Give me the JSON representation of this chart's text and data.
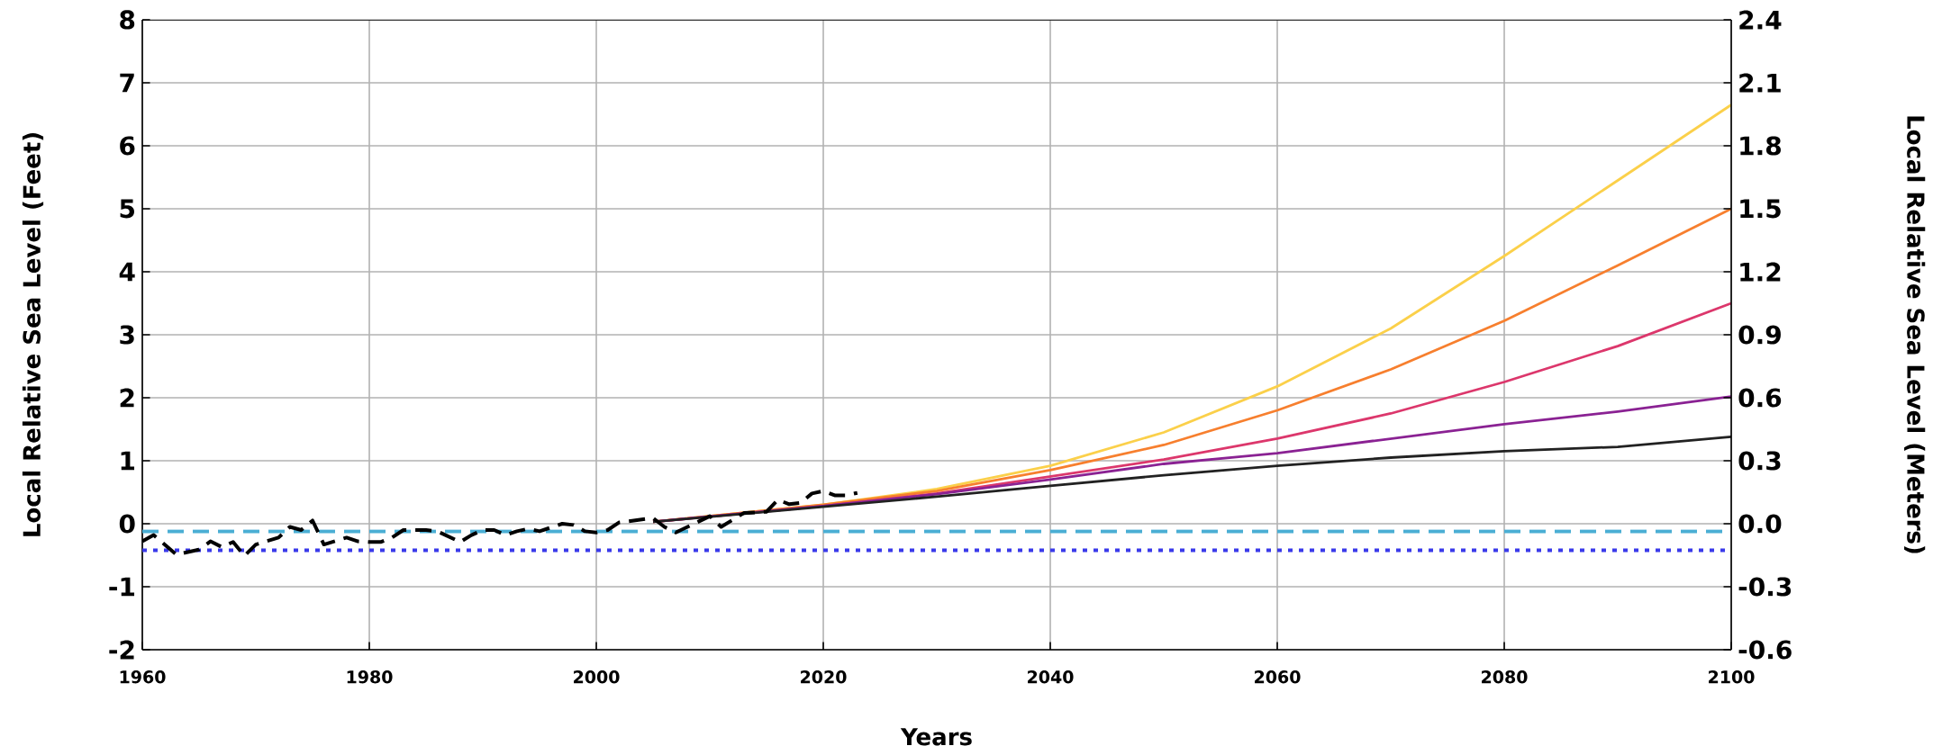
{
  "chart_data": {
    "type": "line",
    "xlabel": "Years",
    "ylabel": "Local Relative Sea Level (Feet)",
    "y2label": "Local Relative Sea Level (Meters)",
    "xlim": [
      1960,
      2100
    ],
    "xticks": [
      1960,
      1980,
      2000,
      2020,
      2040,
      2060,
      2080,
      2100
    ],
    "ylim": [
      -2,
      8
    ],
    "yticks": [
      -2,
      -1,
      0,
      1,
      2,
      3,
      4,
      5,
      6,
      7,
      8
    ],
    "y2lim": [
      -0.6,
      2.4
    ],
    "y2ticks": [
      {
        "value": -0.6,
        "label": "-0.6"
      },
      {
        "value": -0.3,
        "label": "-0.3"
      },
      {
        "value": 0.0,
        "label": "0.0"
      },
      {
        "value": 0.3,
        "label": "0.3"
      },
      {
        "value": 0.6,
        "label": "0.6"
      },
      {
        "value": 0.9,
        "label": "0.9"
      },
      {
        "value": 1.2,
        "label": "1.2"
      },
      {
        "value": 1.5,
        "label": "1.5"
      },
      {
        "value": 1.8,
        "label": "1.8"
      },
      {
        "value": 2.1,
        "label": "2.1"
      },
      {
        "value": 2.4,
        "label": "2.4"
      }
    ],
    "grid": true,
    "ref_lines": [
      {
        "axis": "y",
        "value": -0.12,
        "color": "#4aaed4",
        "line_style": "dashed"
      },
      {
        "axis": "y",
        "value": -0.42,
        "color": "#3a3aea",
        "line_style": "dotted"
      }
    ],
    "series": [
      {
        "color": "#fbd04a",
        "line_style": "solid",
        "x": [
          2005,
          2020,
          2030,
          2040,
          2050,
          2060,
          2070,
          2080,
          2090,
          2100
        ],
        "values": [
          0.03,
          0.3,
          0.55,
          0.92,
          1.45,
          2.18,
          3.1,
          4.25,
          5.45,
          6.65
        ]
      },
      {
        "color": "#f77f2e",
        "line_style": "solid",
        "x": [
          2005,
          2020,
          2030,
          2040,
          2050,
          2060,
          2070,
          2080,
          2090,
          2100
        ],
        "values": [
          0.03,
          0.3,
          0.52,
          0.85,
          1.25,
          1.8,
          2.45,
          3.22,
          4.1,
          5.0
        ]
      },
      {
        "color": "#dc376c",
        "line_style": "solid",
        "x": [
          2005,
          2020,
          2030,
          2040,
          2050,
          2060,
          2070,
          2080,
          2090,
          2100
        ],
        "values": [
          0.03,
          0.28,
          0.48,
          0.75,
          1.02,
          1.35,
          1.75,
          2.25,
          2.82,
          3.5
        ]
      },
      {
        "color": "#8a2293",
        "line_style": "solid",
        "x": [
          2005,
          2020,
          2030,
          2040,
          2050,
          2060,
          2070,
          2080,
          2090,
          2100
        ],
        "values": [
          0.03,
          0.28,
          0.47,
          0.7,
          0.95,
          1.12,
          1.35,
          1.58,
          1.78,
          2.02
        ]
      },
      {
        "color": "#222222",
        "line_style": "solid",
        "x": [
          2005,
          2020,
          2030,
          2040,
          2050,
          2060,
          2070,
          2080,
          2090,
          2100
        ],
        "values": [
          0.03,
          0.27,
          0.43,
          0.6,
          0.77,
          0.92,
          1.05,
          1.15,
          1.22,
          1.38
        ]
      },
      {
        "color": "#000000",
        "line_style": "dashed",
        "x": [
          1960,
          1961,
          1963,
          1965,
          1966,
          1967,
          1968,
          1969,
          1970,
          1972,
          1973,
          1974,
          1975,
          1976,
          1978,
          1979,
          1980,
          1981,
          1982,
          1983,
          1985,
          1986,
          1988,
          1989,
          1990,
          1991,
          1992,
          1993,
          1994,
          1995,
          1996,
          1997,
          1998,
          1999,
          2000,
          2001,
          2002,
          2005,
          2006,
          2007,
          2010,
          2011,
          2013,
          2015,
          2016,
          2017,
          2018,
          2019,
          2020,
          2021,
          2022,
          2023
        ],
        "values": [
          -0.28,
          -0.18,
          -0.49,
          -0.41,
          -0.28,
          -0.37,
          -0.29,
          -0.51,
          -0.33,
          -0.22,
          -0.05,
          -0.1,
          0.05,
          -0.33,
          -0.22,
          -0.28,
          -0.29,
          -0.29,
          -0.22,
          -0.1,
          -0.1,
          -0.12,
          -0.29,
          -0.18,
          -0.1,
          -0.1,
          -0.18,
          -0.12,
          -0.08,
          -0.12,
          -0.06,
          0.0,
          -0.02,
          -0.12,
          -0.14,
          -0.1,
          0.02,
          0.09,
          -0.05,
          -0.14,
          0.12,
          -0.05,
          0.17,
          0.19,
          0.38,
          0.31,
          0.33,
          0.48,
          0.52,
          0.45,
          0.45,
          0.49
        ]
      }
    ]
  }
}
